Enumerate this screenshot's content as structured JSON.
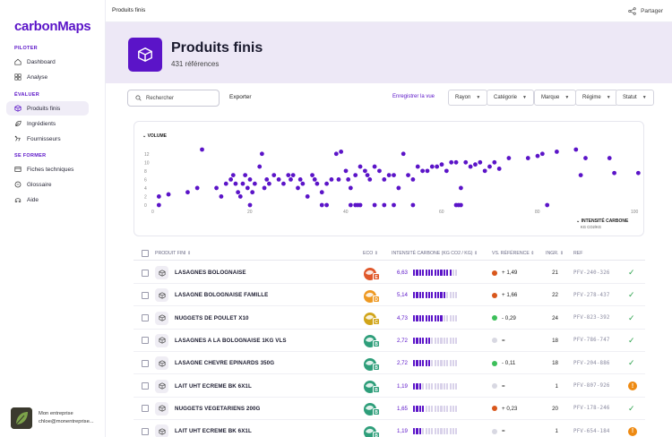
{
  "brand": {
    "logo_text": "carbonMaps"
  },
  "sidebar": {
    "sections": [
      {
        "label": "PILOTER",
        "items": [
          {
            "label": "Dashboard",
            "icon": "home-icon"
          },
          {
            "label": "Analyse",
            "icon": "grid-icon"
          }
        ]
      },
      {
        "label": "ÉVALUER",
        "items": [
          {
            "label": "Produits finis",
            "icon": "cube-icon",
            "active": true
          },
          {
            "label": "Ingrédients",
            "icon": "leaf-icon"
          },
          {
            "label": "Fournisseurs",
            "icon": "supplier-icon"
          }
        ]
      },
      {
        "label": "SE FORMER",
        "items": [
          {
            "label": "Fiches techniques",
            "icon": "sheet-icon"
          },
          {
            "label": "Glossaire",
            "icon": "book-icon"
          },
          {
            "label": "Aide",
            "icon": "help-icon"
          }
        ]
      }
    ],
    "account": {
      "company": "Mon entreprise",
      "email": "chloe@monentreprise..."
    }
  },
  "topbar": {
    "title": "Produits finis",
    "share_label": "Partager"
  },
  "banner": {
    "title": "Produits finis",
    "subtitle": "431 références"
  },
  "toolbar": {
    "search_placeholder": "Rechercher",
    "export_label": "Exporter",
    "save_view_label": "Enregistrer la vue",
    "filters": [
      "Rayon",
      "Catégorie",
      "Marque",
      "Régime",
      "Statut"
    ]
  },
  "chart_data": {
    "type": "scatter",
    "ylabel": "VOLUME",
    "xlabel": "INTENSITÉ CARBONE",
    "xlabel_unit": "KG CO2/KG",
    "xlim": [
      0,
      100
    ],
    "ylim": [
      0,
      13
    ],
    "xticks": [
      0,
      20,
      40,
      60,
      80,
      100
    ],
    "yticks": [
      0,
      2,
      4,
      6,
      8,
      10,
      12
    ],
    "points": [
      [
        1,
        2
      ],
      [
        3,
        2.5
      ],
      [
        7,
        3
      ],
      [
        9,
        4
      ],
      [
        10,
        13
      ],
      [
        13,
        4
      ],
      [
        14,
        2
      ],
      [
        15,
        5
      ],
      [
        16,
        6
      ],
      [
        16.5,
        7
      ],
      [
        17,
        5
      ],
      [
        17.5,
        3
      ],
      [
        18,
        2
      ],
      [
        18.5,
        5
      ],
      [
        19,
        7
      ],
      [
        19.5,
        4
      ],
      [
        20,
        6
      ],
      [
        20.5,
        3
      ],
      [
        21,
        5
      ],
      [
        22,
        9
      ],
      [
        22.5,
        12
      ],
      [
        23,
        4
      ],
      [
        23.5,
        6
      ],
      [
        24,
        5
      ],
      [
        25,
        7
      ],
      [
        26,
        6
      ],
      [
        27,
        5
      ],
      [
        28,
        7
      ],
      [
        28.5,
        6
      ],
      [
        29,
        7
      ],
      [
        30,
        4
      ],
      [
        30.5,
        6
      ],
      [
        31,
        5
      ],
      [
        32,
        2
      ],
      [
        33,
        7
      ],
      [
        33.5,
        6
      ],
      [
        34,
        5
      ],
      [
        35,
        3
      ],
      [
        36,
        5
      ],
      [
        37,
        6
      ],
      [
        38,
        12
      ],
      [
        38.5,
        6
      ],
      [
        39,
        12.5
      ],
      [
        40,
        8
      ],
      [
        40.5,
        6
      ],
      [
        41,
        4
      ],
      [
        42,
        7
      ],
      [
        43,
        9
      ],
      [
        44,
        8
      ],
      [
        44.5,
        7
      ],
      [
        45,
        6
      ],
      [
        46,
        9
      ],
      [
        47,
        8
      ],
      [
        48,
        6
      ],
      [
        49,
        7
      ],
      [
        50,
        7
      ],
      [
        51,
        4
      ],
      [
        52,
        12
      ],
      [
        53,
        7
      ],
      [
        54,
        6
      ],
      [
        55,
        9
      ],
      [
        56,
        8
      ],
      [
        57,
        8
      ],
      [
        58,
        9
      ],
      [
        59,
        9
      ],
      [
        60,
        9.5
      ],
      [
        61,
        8
      ],
      [
        62,
        10
      ],
      [
        63,
        10
      ],
      [
        64,
        4
      ],
      [
        65,
        10
      ],
      [
        66,
        9
      ],
      [
        67,
        9.5
      ],
      [
        68,
        10
      ],
      [
        69,
        8
      ],
      [
        70,
        9
      ],
      [
        71,
        10
      ],
      [
        72,
        8.5
      ],
      [
        74,
        11
      ],
      [
        78,
        11
      ],
      [
        80,
        11.5
      ],
      [
        81,
        12
      ],
      [
        84,
        12.5
      ],
      [
        88,
        13
      ],
      [
        89,
        7
      ],
      [
        90,
        11
      ],
      [
        95,
        11
      ],
      [
        96,
        7.5
      ],
      [
        101,
        7.5
      ],
      [
        1,
        0
      ],
      [
        20,
        0
      ],
      [
        35,
        0
      ],
      [
        36,
        0
      ],
      [
        41,
        0
      ],
      [
        42,
        0
      ],
      [
        42.5,
        0
      ],
      [
        43,
        0
      ],
      [
        46,
        0
      ],
      [
        48,
        0
      ],
      [
        50,
        0
      ],
      [
        54,
        0
      ],
      [
        63,
        0
      ],
      [
        63.5,
        0
      ],
      [
        64,
        0
      ],
      [
        82,
        0
      ]
    ]
  },
  "table": {
    "headers": [
      "PRODUIT FINI",
      "ECO",
      "INTENSITÉ CARBONE (KG CO2 / KG)",
      "VS. RÉFÉRENCE",
      "INGR.",
      "REF"
    ],
    "rows": [
      {
        "name": "LASAGNES BOLOGNAISE",
        "eco": "E",
        "eco_color": "#e0572a",
        "intensity": "6,63",
        "bars": 13,
        "vs_dot": "#d9571c",
        "vs": "+ 1,49",
        "ingr": "21",
        "ref": "PFV-240-326",
        "status": "ok"
      },
      {
        "name": "LASAGNE BOLOGNAISE FAMILLE",
        "eco": "D",
        "eco_color": "#ee9922",
        "intensity": "5,14",
        "bars": 11,
        "vs_dot": "#d9571c",
        "vs": "+ 1,66",
        "ingr": "22",
        "ref": "PFV-278-437",
        "status": "ok"
      },
      {
        "name": "NUGGETS DE POULET X10",
        "eco": "C",
        "eco_color": "#d1a51a",
        "intensity": "4,73",
        "bars": 10,
        "vs_dot": "#3cbf5a",
        "vs": "- 0,29",
        "ingr": "24",
        "ref": "PFV-823-392",
        "status": "ok"
      },
      {
        "name": "LASAGNES A LA BOLOGNAISE 1KG VLS",
        "eco": "B",
        "eco_color": "#2e9e7a",
        "intensity": "2,72",
        "bars": 6,
        "vs_dot": "#d8d8e2",
        "vs": "=",
        "ingr": "18",
        "ref": "PFV-786-747",
        "status": "ok"
      },
      {
        "name": "LASAGNE CHEVRE EPINARDS 350G",
        "eco": "B",
        "eco_color": "#2e9e7a",
        "intensity": "2,72",
        "bars": 6,
        "vs_dot": "#3cbf5a",
        "vs": "- 0,11",
        "ingr": "18",
        "ref": "PFV-204-886",
        "status": "ok"
      },
      {
        "name": "LAIT UHT ECREME BK 6X1L",
        "eco": "B",
        "eco_color": "#2e9e7a",
        "intensity": "1,19",
        "bars": 3,
        "vs_dot": "#d8d8e2",
        "vs": "=",
        "ingr": "1",
        "ref": "PFV-807-926",
        "status": "warn"
      },
      {
        "name": "NUGGETS VEGETARIENS 200G",
        "eco": "B",
        "eco_color": "#2e9e7a",
        "intensity": "1,65",
        "bars": 4,
        "vs_dot": "#d9571c",
        "vs": "+ 0,23",
        "ingr": "20",
        "ref": "PFV-178-246",
        "status": "ok"
      },
      {
        "name": "LAIT UHT ECREME BK 6X1L",
        "eco": "B",
        "eco_color": "#2e9e7a",
        "intensity": "1,19",
        "bars": 3,
        "vs_dot": "#d8d8e2",
        "vs": "=",
        "ingr": "1",
        "ref": "PFV-654-184",
        "status": "warn"
      }
    ]
  },
  "colors": {
    "accent": "#5b14c8",
    "banner_bg": "#ede8f6",
    "ok": "#2aa14a",
    "warn": "#ee8a12"
  }
}
